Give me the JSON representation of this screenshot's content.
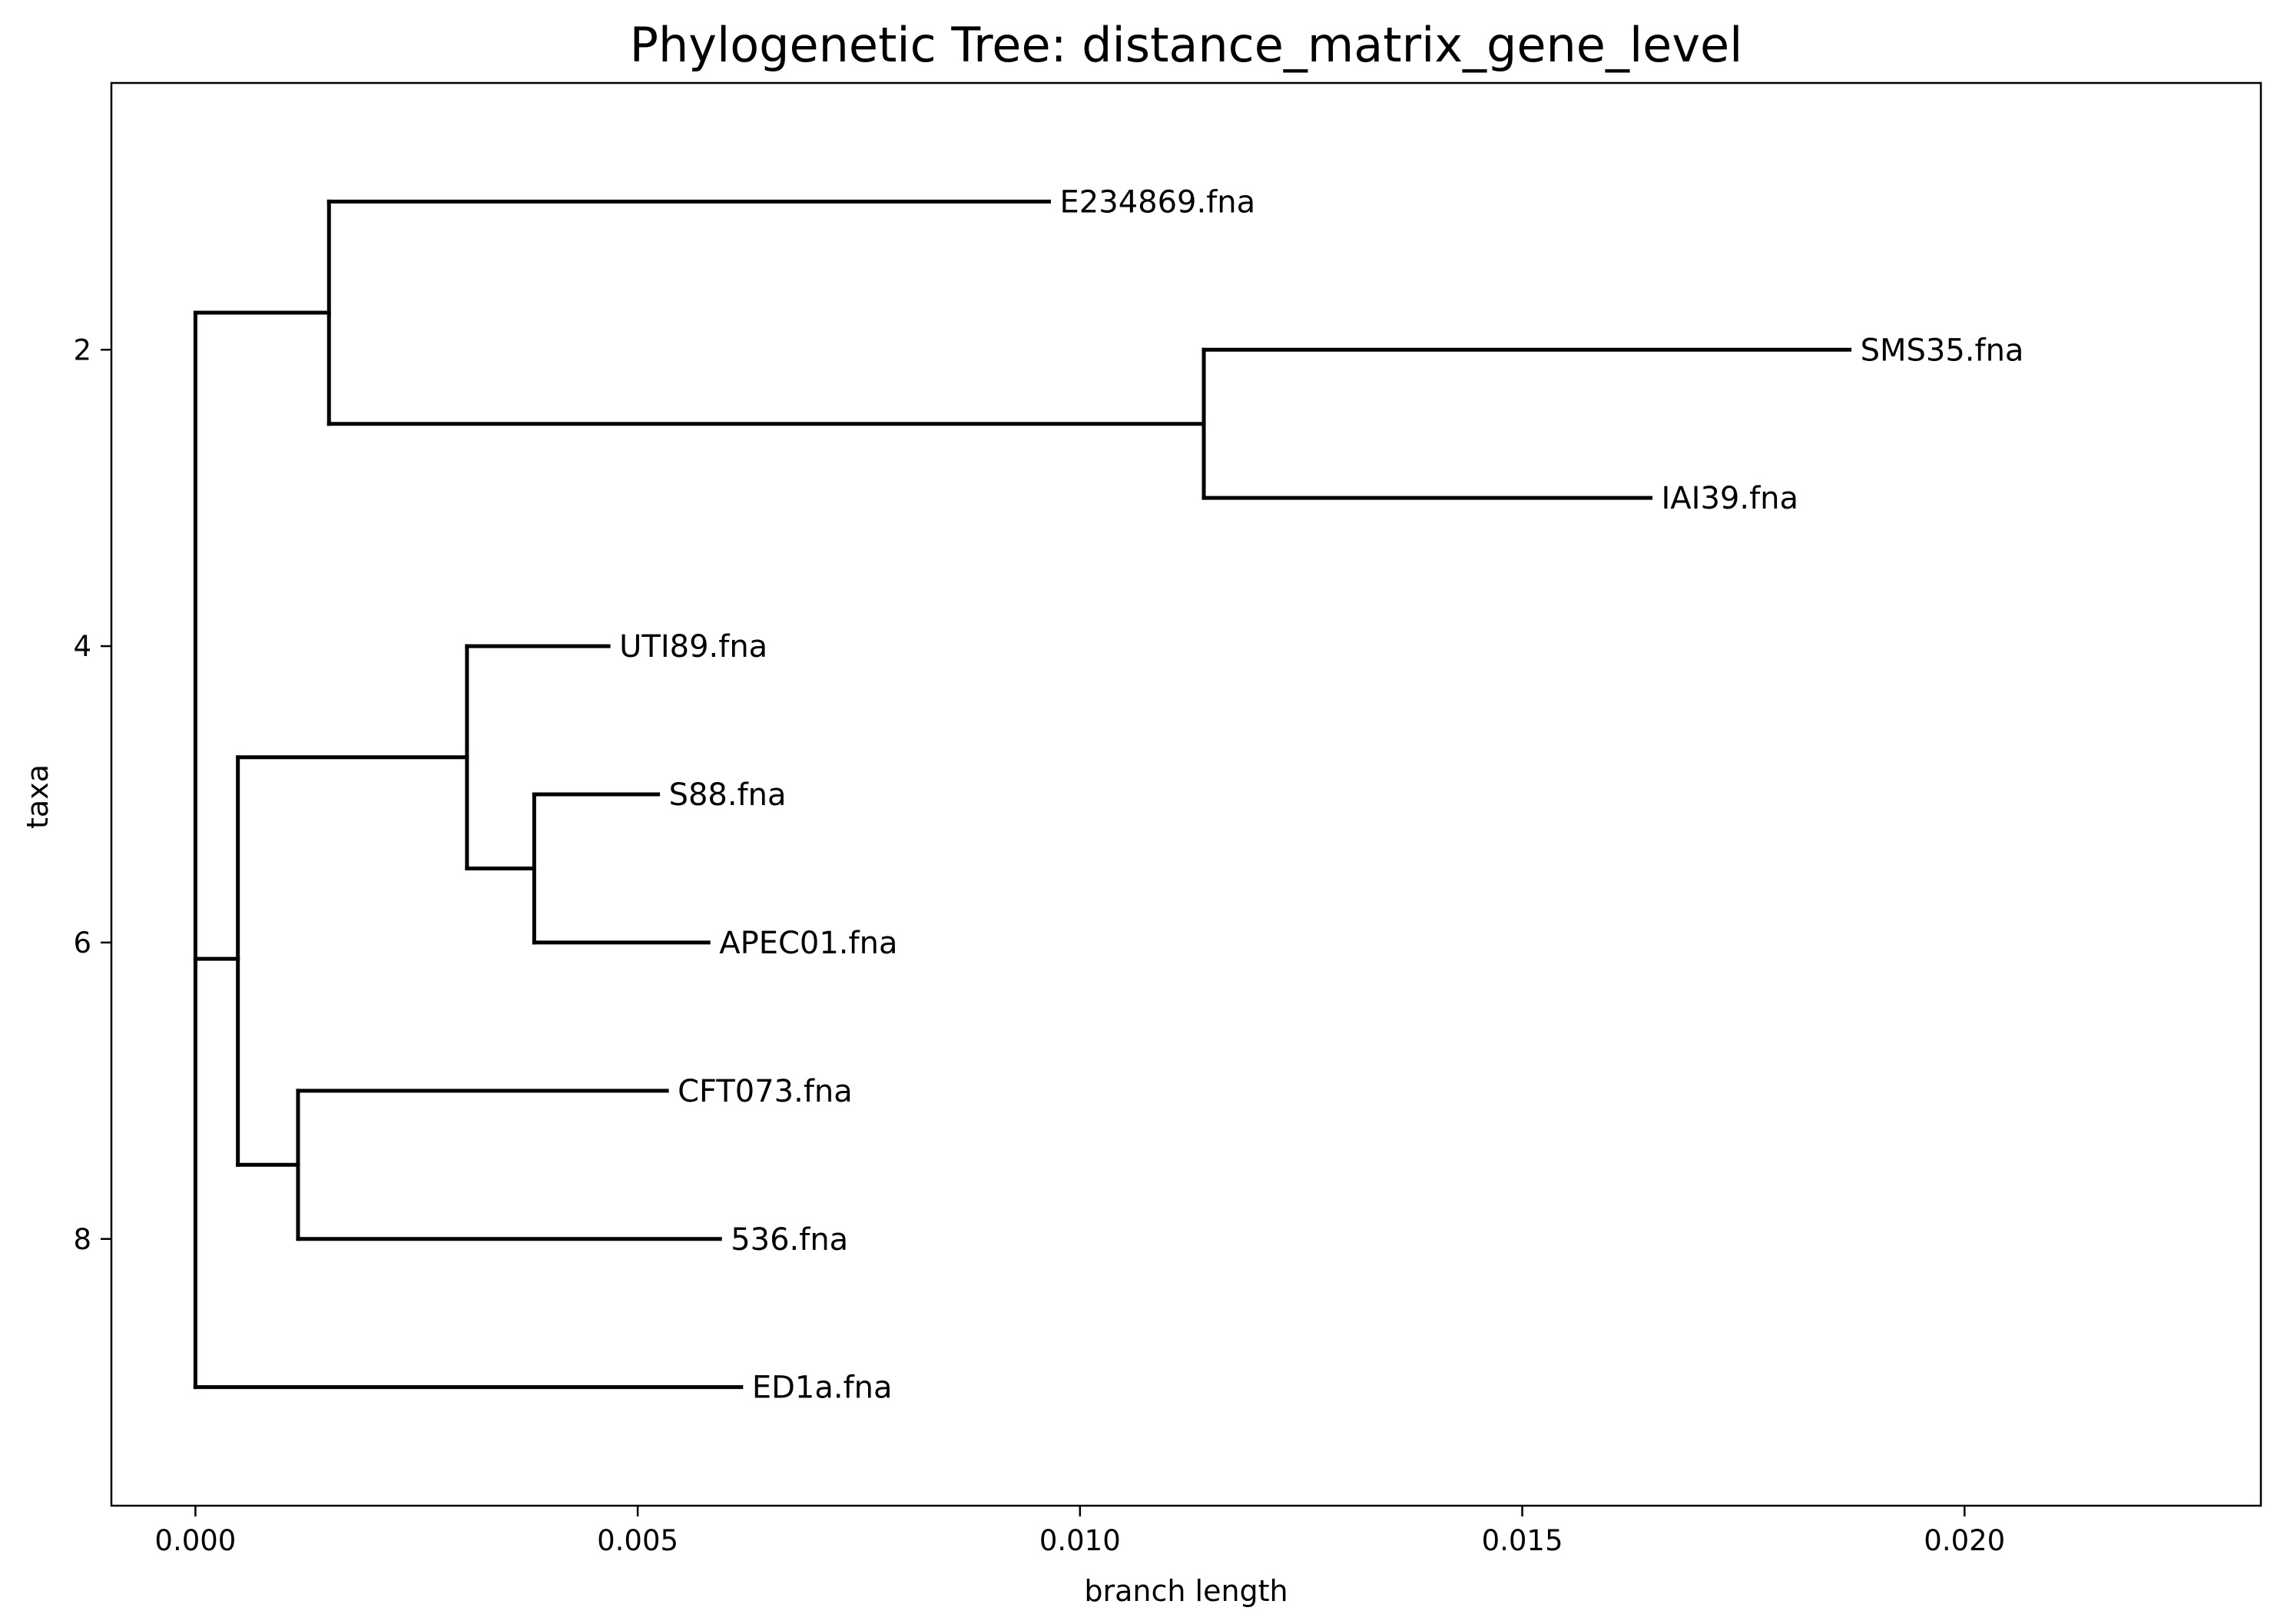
{
  "chart_data": {
    "type": "dendrogram",
    "title": "Phylogenetic Tree: distance_matrix_gene_level",
    "xlabel": "branch length",
    "ylabel": "taxa",
    "xlim": [
      -0.00095,
      0.02335
    ],
    "ylim": [
      9.8,
      0.2
    ],
    "x_ticks": [
      0.0,
      0.005,
      0.01,
      0.015,
      0.02
    ],
    "x_tick_labels": [
      "0.000",
      "0.005",
      "0.010",
      "0.015",
      "0.020"
    ],
    "y_ticks": [
      2,
      4,
      6,
      8
    ],
    "y_tick_labels": [
      "2",
      "4",
      "6",
      "8"
    ],
    "grid": false,
    "leaves": [
      {
        "name": "E234869.fna",
        "x": 0.00965,
        "y": 1
      },
      {
        "name": "SMS35.fna",
        "x": 0.0187,
        "y": 2
      },
      {
        "name": "IAI39.fna",
        "x": 0.01645,
        "y": 3
      },
      {
        "name": "UTI89.fna",
        "x": 0.00467,
        "y": 4
      },
      {
        "name": "S88.fna",
        "x": 0.00523,
        "y": 5
      },
      {
        "name": "APEC01.fna",
        "x": 0.0058,
        "y": 6
      },
      {
        "name": "CFT073.fna",
        "x": 0.00533,
        "y": 7
      },
      {
        "name": "536.fna",
        "x": 0.00593,
        "y": 8
      },
      {
        "name": "ED1a.fna",
        "x": 0.00617,
        "y": 9
      }
    ],
    "internal_nodes": [
      {
        "id": "root",
        "x": 0.0,
        "y_span": [
          1.75,
          9
        ],
        "y": 6.11
      },
      {
        "id": "n1",
        "x": 0.00151,
        "y_span": [
          1,
          2.5
        ],
        "y": 1.75
      },
      {
        "id": "n2",
        "x": 0.0114,
        "y_span": [
          2,
          3
        ],
        "y": 2.5
      },
      {
        "id": "n3",
        "x": 0.00048,
        "y_span": [
          4.75,
          7.5
        ],
        "y": 6.11
      },
      {
        "id": "n4",
        "x": 0.00307,
        "y_span": [
          4,
          5.5
        ],
        "y": 4.75
      },
      {
        "id": "n5",
        "x": 0.00383,
        "y_span": [
          5,
          6
        ],
        "y": 5.5
      },
      {
        "id": "n6",
        "x": 0.00116,
        "y_span": [
          7,
          8
        ],
        "y": 7.5
      }
    ],
    "horizontal_branches": [
      {
        "from_x": 0.0,
        "to_x": 0.00151,
        "y": 1.75
      },
      {
        "from_x": 0.00151,
        "to_x": 0.00965,
        "y": 1
      },
      {
        "from_x": 0.00151,
        "to_x": 0.0114,
        "y": 2.5
      },
      {
        "from_x": 0.0114,
        "to_x": 0.0187,
        "y": 2
      },
      {
        "from_x": 0.0114,
        "to_x": 0.01645,
        "y": 3
      },
      {
        "from_x": 0.0,
        "to_x": 0.00048,
        "y": 6.11
      },
      {
        "from_x": 0.00048,
        "to_x": 0.00307,
        "y": 4.75
      },
      {
        "from_x": 0.00307,
        "to_x": 0.00467,
        "y": 4
      },
      {
        "from_x": 0.00307,
        "to_x": 0.00383,
        "y": 5.5
      },
      {
        "from_x": 0.00383,
        "to_x": 0.00523,
        "y": 5
      },
      {
        "from_x": 0.00383,
        "to_x": 0.0058,
        "y": 6
      },
      {
        "from_x": 0.00048,
        "to_x": 0.00116,
        "y": 7.5
      },
      {
        "from_x": 0.00116,
        "to_x": 0.00533,
        "y": 7
      },
      {
        "from_x": 0.00116,
        "to_x": 0.00593,
        "y": 8
      },
      {
        "from_x": 0.0,
        "to_x": 0.00617,
        "y": 9
      }
    ],
    "vertical_branches": [
      {
        "x": 0.0,
        "y1": 1.75,
        "y2": 9
      },
      {
        "x": 0.00151,
        "y1": 1,
        "y2": 2.5
      },
      {
        "x": 0.0114,
        "y1": 2,
        "y2": 3
      },
      {
        "x": 0.00048,
        "y1": 4.75,
        "y2": 7.5
      },
      {
        "x": 0.00307,
        "y1": 4,
        "y2": 5.5
      },
      {
        "x": 0.00383,
        "y1": 5,
        "y2": 6
      },
      {
        "x": 0.00116,
        "y1": 7,
        "y2": 8
      }
    ]
  }
}
